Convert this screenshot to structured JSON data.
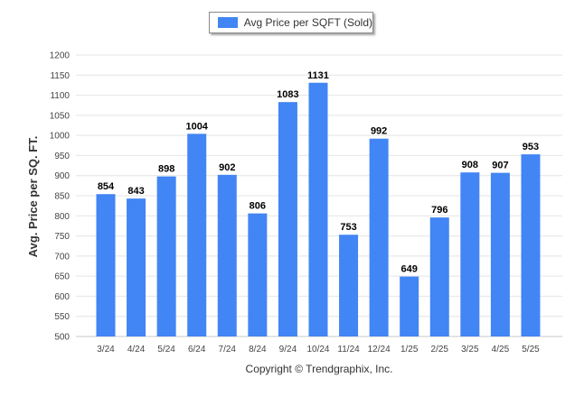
{
  "chart_data": {
    "type": "bar",
    "legend": {
      "label": "Avg Price per SQFT (Sold)",
      "placement": "top-center"
    },
    "ylabel": "Avg. Price per SQ. FT.",
    "xlabel": "",
    "ylim": [
      500,
      1200
    ],
    "yticks": [
      500,
      550,
      600,
      650,
      700,
      750,
      800,
      850,
      900,
      950,
      1000,
      1050,
      1100,
      1150,
      1200
    ],
    "grid": true,
    "categories": [
      "3/24",
      "4/24",
      "5/24",
      "6/24",
      "7/24",
      "8/24",
      "9/24",
      "10/24",
      "11/24",
      "12/24",
      "1/25",
      "2/25",
      "3/25",
      "4/25",
      "5/25"
    ],
    "series": [
      {
        "name": "Avg Price per SQFT (Sold)",
        "values": [
          854,
          843,
          898,
          1004,
          902,
          806,
          1083,
          1131,
          753,
          992,
          649,
          796,
          908,
          907,
          953
        ],
        "color": "#4285f4"
      }
    ],
    "data_labels": true
  },
  "footer": {
    "copyright": "Copyright © Trendgraphix, Inc."
  },
  "colors": {
    "bar": "#4285f4",
    "grid": "#e4e4e4",
    "axis": "#c8c8c8"
  }
}
